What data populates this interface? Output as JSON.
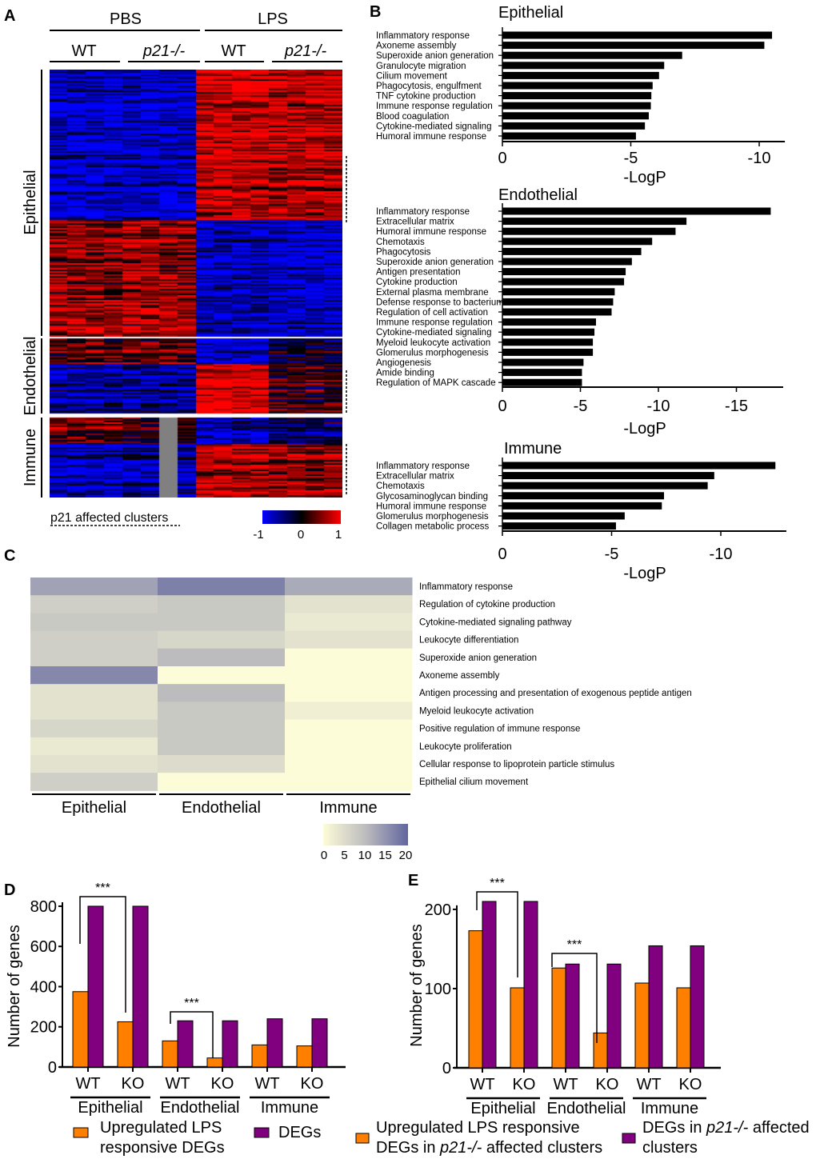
{
  "panel_letters": {
    "a": "A",
    "b": "B",
    "c": "C",
    "d": "D",
    "e": "E"
  },
  "panel_a": {
    "treatments": [
      "PBS",
      "LPS"
    ],
    "genotypes": [
      "WT",
      "p21-/-",
      "WT",
      "p21-/-"
    ],
    "clusters": [
      "Epithelial",
      "Endothelial",
      "Immune"
    ],
    "footnote": "p21 affected clusters",
    "colorbar_ticks": [
      "-1",
      "0",
      "1"
    ],
    "colors": {
      "low": "#0000ff",
      "mid": "#000000",
      "high": "#ff0000",
      "missing": "#808080"
    }
  },
  "chart_data": [
    {
      "type": "bar",
      "orientation": "horizontal",
      "title": "Epithelial",
      "xlabel": "-LogP",
      "xlim": [
        0,
        -11
      ],
      "ticks": [
        "0",
        "-5",
        "-10"
      ],
      "categories": [
        "Inflammatory response",
        "Axoneme assembly",
        "Superoxide anion generation",
        "Granulocyte migration",
        "Cilium movement",
        "Phagocytosis, engulfment",
        "TNF cytokine production",
        "Immune response regulation",
        "Blood coagulation",
        "Cytokine-mediated signaling",
        "Humoral immune response"
      ],
      "values": [
        -10.5,
        -10.2,
        -7.0,
        -6.3,
        -6.1,
        -5.85,
        -5.8,
        -5.78,
        -5.7,
        -5.55,
        -5.2
      ]
    },
    {
      "type": "bar",
      "orientation": "horizontal",
      "title": "Endothelial",
      "xlabel": "-LogP",
      "xlim": [
        0,
        -18
      ],
      "ticks": [
        "0",
        "-5",
        "-10",
        "-15"
      ],
      "categories": [
        "Inflammatory response",
        "Extracellular matrix",
        "Humoral immune response",
        "Chemotaxis",
        "Phagocytosis",
        "Superoxide anion generation",
        "Antigen presentation",
        "Cytokine production",
        "External plasma membrane",
        "Defense response to bacterium",
        "Regulation of cell activation",
        "Immune response regulation",
        "Cytokine-mediated signaling",
        "Myeloid leukocyte activation",
        "Glomerulus morphogenesis",
        "Angiogenesis",
        "Amide binding",
        "Regulation of MAPK cascade"
      ],
      "values": [
        -17.2,
        -11.8,
        -11.1,
        -9.6,
        -8.9,
        -8.3,
        -7.9,
        -7.8,
        -7.2,
        -7.1,
        -7.0,
        -6.0,
        -5.9,
        -5.8,
        -5.8,
        -5.2,
        -5.1,
        -5.1
      ]
    },
    {
      "type": "bar",
      "orientation": "horizontal",
      "title": "Immune",
      "xlabel": "-LogP",
      "xlim": [
        0,
        -13
      ],
      "ticks": [
        "0",
        "-5",
        "-10"
      ],
      "categories": [
        "Inflammatory response",
        "Extracellular matrix",
        "Chemotaxis",
        "Glycosaminoglycan binding",
        "Humoral immune response",
        "Glomerulus morphogenesis",
        "Collagen metabolic process"
      ],
      "values": [
        -12.5,
        -9.7,
        -9.4,
        -7.4,
        -7.3,
        -5.6,
        -5.2
      ]
    },
    {
      "type": "heatmap",
      "columns": [
        "Epithelial",
        "Endothelial",
        "Immune"
      ],
      "rows": [
        "Inflammatory response",
        "Regulation of cytokine production",
        "Cytokine-mediated signaling pathway",
        "Leukocyte differentiation",
        "Superoxide anion generation",
        "Axoneme assembly",
        "Antigen processing and presentation of exogenous peptide antigen",
        "Myeloid leukocyte activation",
        "Positive regulation of immune response",
        "Leukocyte proliferation",
        "Cellular response to lipoprotein particle stimulus",
        "Epithelial cilium movement"
      ],
      "values": [
        [
          13,
          17,
          12
        ],
        [
          7,
          8,
          4
        ],
        [
          8,
          8,
          3
        ],
        [
          7,
          6,
          4
        ],
        [
          7,
          10,
          0
        ],
        [
          16,
          0,
          0
        ],
        [
          4,
          10,
          0
        ],
        [
          4,
          8,
          2
        ],
        [
          6,
          8,
          0
        ],
        [
          3,
          8,
          0
        ],
        [
          4,
          5,
          0
        ],
        [
          7,
          0,
          0
        ]
      ],
      "range": [
        0,
        20
      ],
      "colorbar_ticks": [
        "0",
        "5",
        "10",
        "15",
        "20"
      ],
      "colors": {
        "low": "#fdfcd8",
        "mid": "#bcbcbf",
        "high": "#62669e"
      }
    },
    {
      "type": "bar",
      "ylabel": "Number of genes",
      "ylim": [
        0,
        800
      ],
      "yticks": [
        "0",
        "200",
        "400",
        "600",
        "800"
      ],
      "categories": [
        "WT",
        "KO",
        "WT",
        "KO",
        "WT",
        "KO"
      ],
      "groups": [
        "Epithelial",
        "Endothelial",
        "Immune"
      ],
      "series": [
        {
          "name": "Upregulated LPS responsive DEGs",
          "color": "#ff8000",
          "values": [
            375,
            225,
            130,
            45,
            110,
            105
          ]
        },
        {
          "name": "DEGs",
          "color": "#800080",
          "values": [
            800,
            800,
            230,
            230,
            240,
            240
          ]
        }
      ],
      "significance": [
        {
          "label": "***",
          "between": [
            0,
            1
          ]
        },
        {
          "label": "***",
          "between": [
            2,
            3
          ]
        }
      ]
    },
    {
      "type": "bar",
      "ylabel": "Number of genes",
      "ylim": [
        0,
        210
      ],
      "yticks": [
        "0",
        "100",
        "200"
      ],
      "categories": [
        "WT",
        "KO",
        "WT",
        "KO",
        "WT",
        "KO"
      ],
      "groups": [
        "Epithelial",
        "Endothelial",
        "Immune"
      ],
      "series": [
        {
          "name": "Upregulated LPS responsive DEGs in p21-/- affected clusters",
          "color": "#ff8000",
          "values": [
            173,
            101,
            126,
            44,
            107,
            101
          ]
        },
        {
          "name": "DEGs in p21-/- affected clusters",
          "color": "#800080",
          "values": [
            210,
            210,
            131,
            131,
            154,
            154
          ]
        }
      ],
      "significance": [
        {
          "label": "***",
          "between": [
            0,
            1
          ]
        },
        {
          "label": "***",
          "between": [
            2,
            3
          ]
        }
      ]
    }
  ],
  "legend_d": {
    "orange_line1": "Upregulated LPS",
    "orange_line2": "responsive DEGs",
    "purple": "DEGs"
  },
  "legend_e": {
    "orange_line1": "Upregulated LPS responsive",
    "orange_line2a": "DEGs in ",
    "orange_line2b": "p21-/-",
    "orange_line2c": " affected clusters",
    "purple_line1a": "DEGs in ",
    "purple_line1b": "p21-/-",
    "purple_line1c": " affected",
    "purple_line2": "clusters"
  }
}
